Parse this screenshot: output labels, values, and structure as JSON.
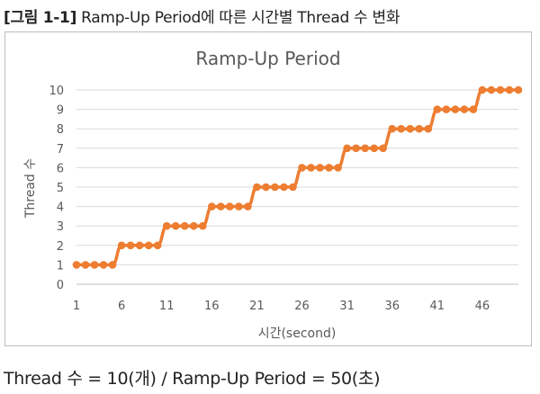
{
  "caption": {
    "label": "[그림 1-1]",
    "text": "Ramp-Up Period에 따른 시간별 Thread 수 변화"
  },
  "formula": "Thread 수 = 10(개) / Ramp-Up Period = 50(초)",
  "chart_data": {
    "type": "line",
    "title": "Ramp-Up Period",
    "xlabel": "시간(second)",
    "ylabel": "Thread 수",
    "x_ticks": [
      "1",
      "6",
      "11",
      "16",
      "21",
      "26",
      "31",
      "36",
      "41",
      "46"
    ],
    "y_ticks": [
      "0",
      "1",
      "2",
      "3",
      "4",
      "5",
      "6",
      "7",
      "8",
      "9",
      "10"
    ],
    "xlim": [
      1,
      50
    ],
    "ylim": [
      0,
      10
    ],
    "grid": true,
    "series_color": "#ed7d31",
    "x": [
      1,
      2,
      3,
      4,
      5,
      6,
      7,
      8,
      9,
      10,
      11,
      12,
      13,
      14,
      15,
      16,
      17,
      18,
      19,
      20,
      21,
      22,
      23,
      24,
      25,
      26,
      27,
      28,
      29,
      30,
      31,
      32,
      33,
      34,
      35,
      36,
      37,
      38,
      39,
      40,
      41,
      42,
      43,
      44,
      45,
      46,
      47,
      48,
      49,
      50
    ],
    "y": [
      1,
      1,
      1,
      1,
      1,
      2,
      2,
      2,
      2,
      2,
      3,
      3,
      3,
      3,
      3,
      4,
      4,
      4,
      4,
      4,
      5,
      5,
      5,
      5,
      5,
      6,
      6,
      6,
      6,
      6,
      7,
      7,
      7,
      7,
      7,
      8,
      8,
      8,
      8,
      8,
      9,
      9,
      9,
      9,
      9,
      10,
      10,
      10,
      10,
      10
    ]
  }
}
